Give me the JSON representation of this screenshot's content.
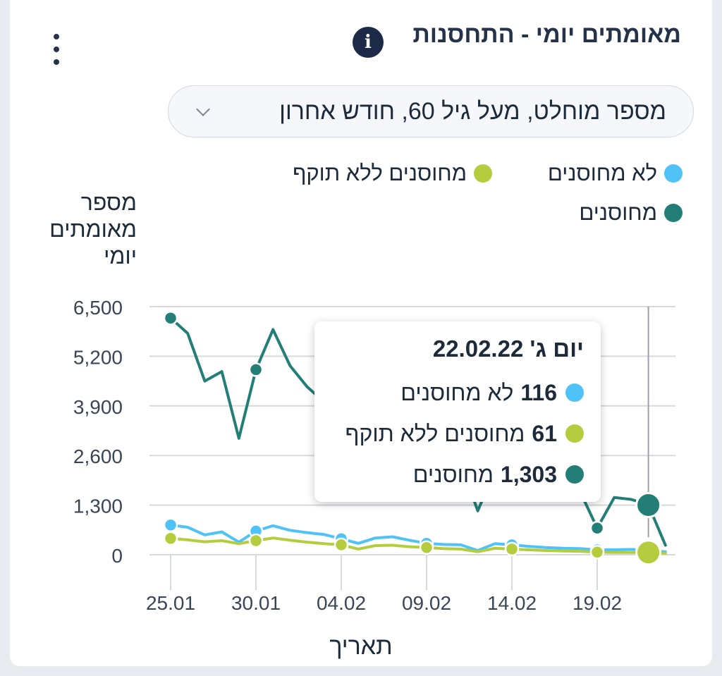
{
  "header": {
    "title": "מאומתים יומי - התחסנות",
    "info_icon": "info-icon",
    "menu_icon": "more-vertical-icon"
  },
  "filter": {
    "selected": "מספר מוחלט, מעל גיל 60, חודש אחרון",
    "chevron_icon": "chevron-down-icon"
  },
  "colors": {
    "unvaccinated": "#4fc3f7",
    "expired": "#b5cc3e",
    "vaccinated": "#237e77",
    "grid": "#d6d9de",
    "axis_text": "#3a4656"
  },
  "chart_data": {
    "type": "line",
    "ylabel": "מספר מאומתים יומי",
    "xlabel": "תאריך",
    "ylim": [
      0,
      6500
    ],
    "yticks": [
      "6,500",
      "5,200",
      "3,900",
      "2,600",
      "1,300",
      "0"
    ],
    "ytick_values": [
      6500,
      5200,
      3900,
      2600,
      1300,
      0
    ],
    "xtick_labels": [
      "25.01",
      "30.01",
      "04.02",
      "09.02",
      "14.02",
      "19.02"
    ],
    "xtick_index": [
      0,
      5,
      10,
      15,
      20,
      25
    ],
    "x": [
      "25.01",
      "26.01",
      "27.01",
      "28.01",
      "29.01",
      "30.01",
      "31.01",
      "01.02",
      "02.02",
      "03.02",
      "04.02",
      "05.02",
      "06.02",
      "07.02",
      "08.02",
      "09.02",
      "10.02",
      "11.02",
      "12.02",
      "13.02",
      "14.02",
      "15.02",
      "16.02",
      "17.02",
      "18.02",
      "19.02",
      "20.02",
      "21.02",
      "22.02",
      "23.02"
    ],
    "legend_placement": "top",
    "grid": true,
    "series": [
      {
        "name": "לא מחוסנים",
        "key": "unvaccinated",
        "values": [
          780,
          720,
          520,
          600,
          330,
          620,
          760,
          640,
          580,
          530,
          420,
          300,
          440,
          470,
          380,
          300,
          270,
          260,
          110,
          290,
          260,
          220,
          190,
          170,
          160,
          130,
          130,
          140,
          116,
          80
        ],
        "markers": [
          0,
          5,
          10,
          15,
          20,
          25
        ]
      },
      {
        "name": "מחוסנים ללא תוקף",
        "key": "expired",
        "values": [
          430,
          390,
          340,
          370,
          290,
          370,
          440,
          380,
          330,
          290,
          260,
          150,
          240,
          250,
          210,
          190,
          160,
          150,
          80,
          170,
          150,
          130,
          110,
          100,
          90,
          70,
          60,
          60,
          61,
          40
        ],
        "markers": [
          0,
          5,
          10,
          15,
          20,
          25
        ]
      },
      {
        "name": "מחוסנים",
        "key": "vaccinated",
        "values": [
          6200,
          5800,
          4550,
          4800,
          3050,
          4850,
          5900,
          4950,
          4400,
          4000,
          3900,
          3500,
          3300,
          3100,
          2950,
          2800,
          2600,
          2400,
          1150,
          2200,
          2050,
          1900,
          1800,
          1700,
          1650,
          700,
          1500,
          1450,
          1303,
          250
        ],
        "markers": [
          0,
          5,
          25
        ]
      }
    ],
    "highlight_index": 28,
    "tooltip": {
      "title": "יום ג' 22.02.22",
      "rows": [
        {
          "value": "116",
          "label": "לא מחוסנים",
          "key": "unvaccinated"
        },
        {
          "value": "61",
          "label": "מחוסנים ללא תוקף",
          "key": "expired"
        },
        {
          "value": "1,303",
          "label": "מחוסנים",
          "key": "vaccinated"
        }
      ]
    }
  }
}
